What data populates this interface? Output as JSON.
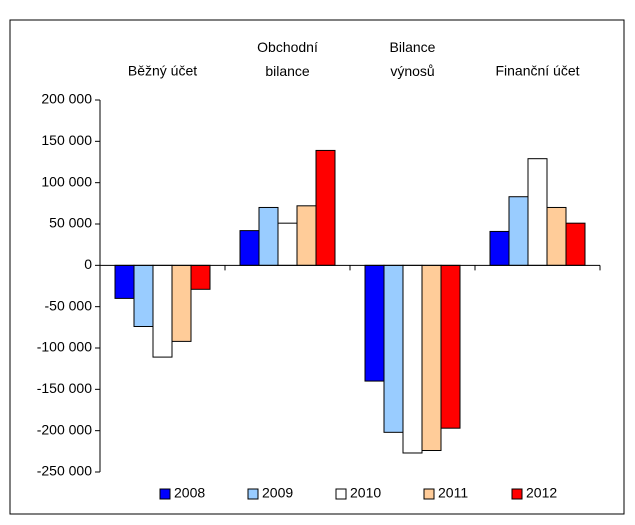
{
  "chart_data": {
    "type": "bar",
    "categories": [
      "Běžný účet",
      "Obchodní\nbilance",
      "Bilance\nvýnosů",
      "Finanční účet"
    ],
    "series": [
      {
        "name": "2008",
        "color": "#0000ff",
        "values": [
          -40000,
          42000,
          -140000,
          41000
        ]
      },
      {
        "name": "2009",
        "color": "#99ccff",
        "values": [
          -74000,
          70000,
          -202000,
          83000
        ]
      },
      {
        "name": "2010",
        "color": "#ffffff",
        "values": [
          -111000,
          51000,
          -227000,
          129000
        ]
      },
      {
        "name": "2011",
        "color": "#ffcc99",
        "values": [
          -92000,
          72000,
          -224000,
          70000
        ]
      },
      {
        "name": "2012",
        "color": "#ff0000",
        "values": [
          -29000,
          139000,
          -197000,
          51000
        ]
      }
    ],
    "ylim": [
      -250000,
      200000
    ],
    "yticks": [
      {
        "value": -250000,
        "label": "-250 000"
      },
      {
        "value": -200000,
        "label": "-200 000"
      },
      {
        "value": -150000,
        "label": "-150 000"
      },
      {
        "value": -100000,
        "label": "-100 000"
      },
      {
        "value": -50000,
        "label": "-50 000"
      },
      0,
      {
        "value": 50000,
        "label": "50 000"
      },
      {
        "value": 100000,
        "label": "100 000"
      },
      {
        "value": 150000,
        "label": "150 000"
      },
      {
        "value": 200000,
        "label": "200 000"
      }
    ],
    "grid": false,
    "legend": "bottom"
  }
}
